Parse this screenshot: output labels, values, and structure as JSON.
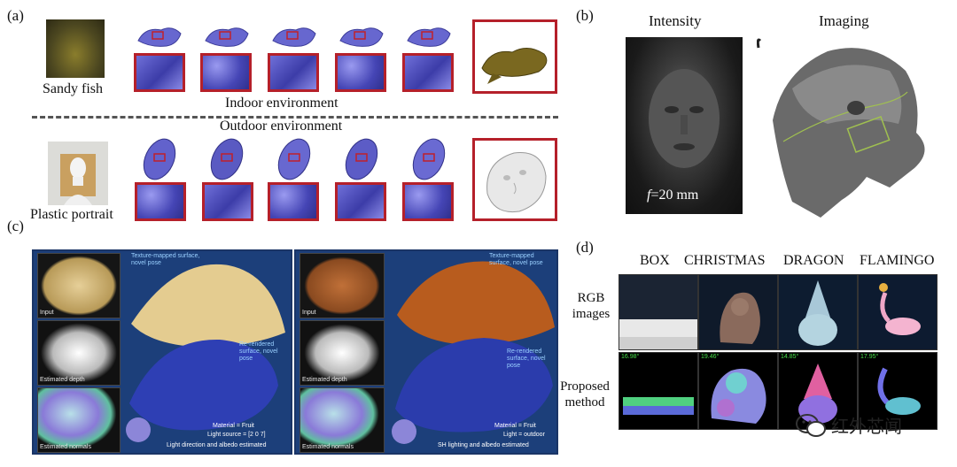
{
  "panel_a": {
    "label": "(a)",
    "row1_caption": "Sandy fish",
    "row2_caption": "Plastic portrait",
    "indoor_label": "Indoor environment",
    "outdoor_label": "Outdoor environment"
  },
  "panel_b": {
    "label": "(b)",
    "intensity_title": "Intensity",
    "imaging_title": "Imaging",
    "focal_italic": "f",
    "focal_value": "=20 mm"
  },
  "panel_c": {
    "label": "(c)",
    "left": {
      "input": "Input",
      "depth": "Estimated depth",
      "normals": "Estimated normals",
      "texture_note": "Texture-mapped surface, novel pose",
      "rerender_note": "Re-rendered surface, novel pose",
      "material": "Material = Fruit",
      "light": "Light source = [2 0 7]",
      "footer": "Light direction and albedo estimated"
    },
    "right": {
      "input": "Input",
      "depth": "Estimated depth",
      "normals": "Estimated normals",
      "texture_note": "Texture-mapped surface, novel pose",
      "rerender_note": "Re-rendered surface, novel pose",
      "material": "Material = Fruit",
      "light": "Light = outdoor",
      "footer": "SH lighting and albedo estimated"
    }
  },
  "panel_d": {
    "label": "(d)",
    "columns": [
      "BOX",
      "CHRISTMAS",
      "DRAGON",
      "FLAMINGO"
    ],
    "row1_label": "RGB images",
    "row2_label": "Proposed method",
    "angles": [
      "16.98°",
      "19.46°",
      "14.85°",
      "17.95°"
    ]
  },
  "watermark": {
    "text": "红外芯闻"
  }
}
